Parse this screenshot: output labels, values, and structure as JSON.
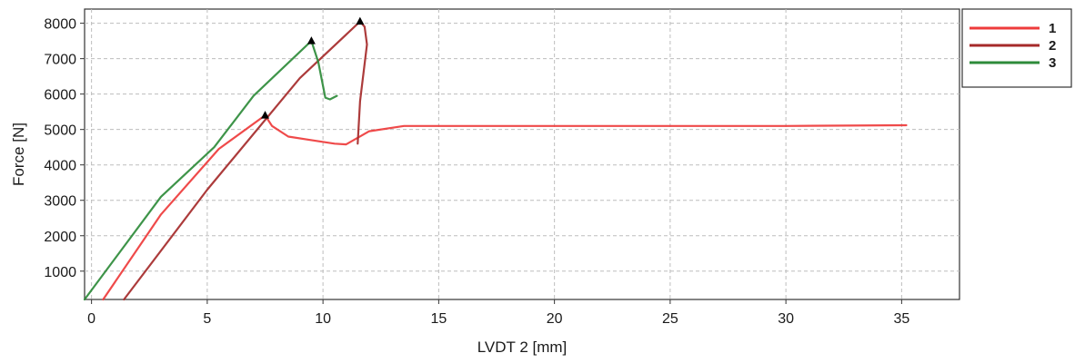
{
  "chart_data": {
    "type": "line",
    "title": "",
    "xlabel": "LVDT 2 [mm]",
    "ylabel": "Force [N]",
    "xlim": [
      -0.3,
      37.5
    ],
    "ylim": [
      200,
      8400
    ],
    "x_ticks": [
      0,
      5,
      10,
      15,
      20,
      25,
      30,
      35
    ],
    "y_ticks": [
      1000,
      2000,
      3000,
      4000,
      5000,
      6000,
      7000,
      8000
    ],
    "grid": true,
    "legend_position": "outside-right-top",
    "series": [
      {
        "name": "1",
        "color": "#ee3b3b",
        "points": [
          [
            0.5,
            200
          ],
          [
            3.0,
            2600
          ],
          [
            5.5,
            4450
          ],
          [
            7.5,
            5400
          ],
          [
            7.8,
            5100
          ],
          [
            8.5,
            4800
          ],
          [
            9.5,
            4700
          ],
          [
            10.5,
            4600
          ],
          [
            11.0,
            4580
          ],
          [
            12.0,
            4950
          ],
          [
            13.5,
            5100
          ],
          [
            20,
            5100
          ],
          [
            30,
            5100
          ],
          [
            35.2,
            5120
          ]
        ],
        "peak_marker": [
          7.5,
          5400
        ]
      },
      {
        "name": "2",
        "color": "#a52a2a",
        "points": [
          [
            1.4,
            200
          ],
          [
            5.0,
            3300
          ],
          [
            9.0,
            6450
          ],
          [
            11.6,
            8050
          ],
          [
            11.8,
            7900
          ],
          [
            11.9,
            7400
          ],
          [
            11.6,
            5800
          ],
          [
            11.5,
            4600
          ]
        ],
        "peak_marker": [
          11.6,
          8050
        ]
      },
      {
        "name": "3",
        "color": "#2e8b3a",
        "points": [
          [
            -0.3,
            200
          ],
          [
            3.0,
            3100
          ],
          [
            5.3,
            4500
          ],
          [
            7.0,
            5950
          ],
          [
            9.5,
            7500
          ],
          [
            9.8,
            6900
          ],
          [
            10.1,
            5900
          ],
          [
            10.3,
            5850
          ],
          [
            10.6,
            5950
          ]
        ],
        "peak_marker": [
          9.5,
          7500
        ]
      }
    ]
  }
}
